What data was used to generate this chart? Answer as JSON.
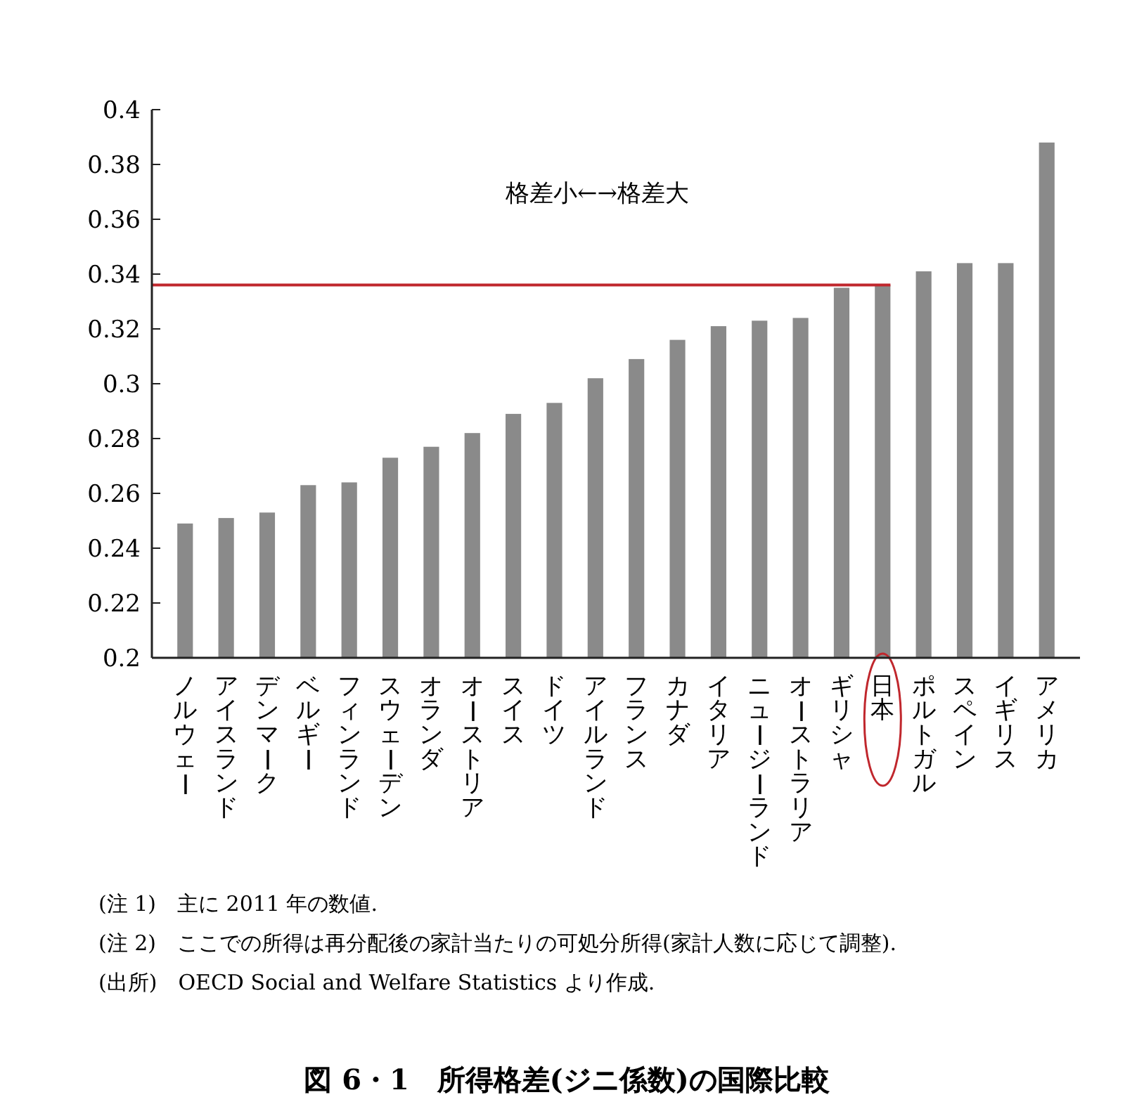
{
  "chart_data": {
    "type": "bar",
    "title": "図 6・1　所得格差(ジニ係数)の国際比較",
    "categories": [
      "ノルウェー",
      "アイスランド",
      "デンマーク",
      "ベルギー",
      "フィンランド",
      "スウェーデン",
      "オランダ",
      "オーストリア",
      "スイス",
      "ドイツ",
      "アイルランド",
      "フランス",
      "カナダ",
      "イタリア",
      "ニュージーランド",
      "オーストラリア",
      "ギリシャ",
      "日本",
      "ポルトガル",
      "スペイン",
      "イギリス",
      "アメリカ"
    ],
    "values": [
      0.249,
      0.251,
      0.253,
      0.263,
      0.264,
      0.273,
      0.277,
      0.282,
      0.289,
      0.293,
      0.302,
      0.309,
      0.316,
      0.321,
      0.323,
      0.324,
      0.335,
      0.336,
      0.341,
      0.344,
      0.344,
      0.388
    ],
    "color": "#8a8a8a",
    "ylim": [
      0.2,
      0.4
    ],
    "yticks": [
      0.2,
      0.22,
      0.24,
      0.26,
      0.28,
      {
        "value": 0.3,
        "label": "0.3"
      },
      0.32,
      0.34,
      0.36,
      0.38,
      {
        "value": 0.4,
        "label": "0.4"
      }
    ],
    "grid": false,
    "ref_lines": [
      {
        "axis": "y",
        "value": 0.336,
        "color": "#c0272d"
      }
    ],
    "annotations": [
      "格差小←→格差大",
      "(注 1)　主に 2011 年の数値.",
      "(注 2)　ここでの所得は再分配後の家計当たりの可処分所得(家計人数に応じて調整).",
      "(出所)　OECD Social and Welfare Statistics より作成."
    ]
  }
}
